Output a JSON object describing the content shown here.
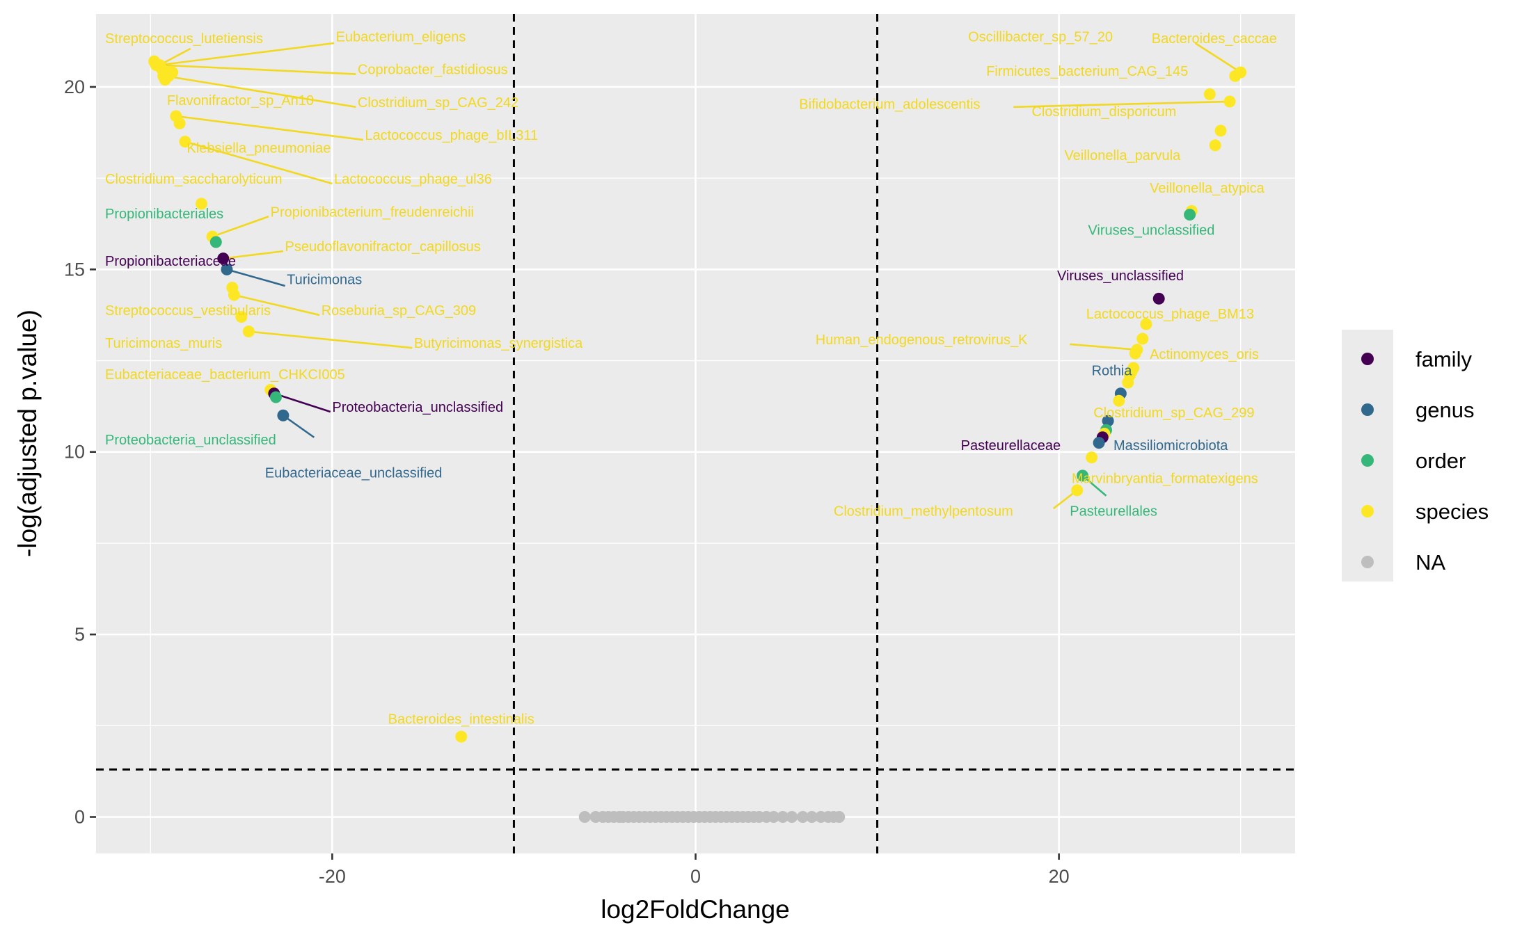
{
  "chart_data": {
    "type": "scatter",
    "title": "",
    "xlabel": "log2FoldChange",
    "ylabel": "-log(adjusted p.value)",
    "xlim": [
      -33,
      33
    ],
    "ylim": [
      -1,
      22
    ],
    "x_ticks": [
      -20,
      0,
      20
    ],
    "x_tick_labels": [
      "-20",
      "0",
      "20"
    ],
    "y_ticks": [
      0,
      5,
      10,
      15,
      20
    ],
    "y_tick_labels": [
      "0",
      "5",
      "10",
      "15",
      "20"
    ],
    "grid": true,
    "threshold_lines": {
      "x": [
        -10,
        10
      ],
      "y": 1.3
    },
    "legend": {
      "position": "right",
      "entries": [
        {
          "label": "family",
          "color": "#440154"
        },
        {
          "label": "genus",
          "color": "#31688E"
        },
        {
          "label": "order",
          "color": "#35B779"
        },
        {
          "label": "species",
          "color": "#FDE725"
        },
        {
          "label": "NA",
          "color": "#BEBEBE"
        }
      ]
    },
    "colors": {
      "family": "#440154",
      "genus": "#31688E",
      "order": "#35B779",
      "species": "#FDE725",
      "NA": "#BEBEBE",
      "panel": "#EBEBEB",
      "grid": "#FFFFFF"
    },
    "points": [
      {
        "x": -29.5,
        "y": 20.6,
        "level": "species"
      },
      {
        "x": -29.2,
        "y": 20.3,
        "level": "species"
      },
      {
        "x": -29.0,
        "y": 20.4,
        "level": "species"
      },
      {
        "x": -29.2,
        "y": 20.2,
        "level": "species"
      },
      {
        "x": -29.8,
        "y": 20.7,
        "level": "species"
      },
      {
        "x": -29.3,
        "y": 20.3,
        "level": "species"
      },
      {
        "x": -29.1,
        "y": 20.4,
        "level": "species"
      },
      {
        "x": -29.4,
        "y": 20.5,
        "level": "species"
      },
      {
        "x": -29.0,
        "y": 20.3,
        "level": "species"
      },
      {
        "x": -28.8,
        "y": 20.4,
        "level": "species"
      },
      {
        "x": -29.7,
        "y": 20.6,
        "level": "species"
      },
      {
        "x": -28.6,
        "y": 19.2,
        "level": "species"
      },
      {
        "x": -28.4,
        "y": 19.0,
        "level": "species"
      },
      {
        "x": -28.1,
        "y": 18.5,
        "level": "species"
      },
      {
        "x": -27.2,
        "y": 16.8,
        "level": "species"
      },
      {
        "x": -26.6,
        "y": 15.9,
        "level": "species"
      },
      {
        "x": -26.4,
        "y": 15.75,
        "level": "order"
      },
      {
        "x": -26.0,
        "y": 15.3,
        "level": "family"
      },
      {
        "x": -25.8,
        "y": 15.0,
        "level": "genus"
      },
      {
        "x": -25.5,
        "y": 14.5,
        "level": "species"
      },
      {
        "x": -25.4,
        "y": 14.3,
        "level": "species"
      },
      {
        "x": -25.0,
        "y": 13.7,
        "level": "species"
      },
      {
        "x": -24.6,
        "y": 13.3,
        "level": "species"
      },
      {
        "x": -23.4,
        "y": 11.7,
        "level": "species"
      },
      {
        "x": -23.2,
        "y": 11.6,
        "level": "family"
      },
      {
        "x": -23.1,
        "y": 11.5,
        "level": "order"
      },
      {
        "x": -22.7,
        "y": 11.0,
        "level": "genus"
      },
      {
        "x": -12.9,
        "y": 2.2,
        "level": "species"
      },
      {
        "x": 30.0,
        "y": 20.4,
        "level": "species"
      },
      {
        "x": 29.7,
        "y": 20.3,
        "level": "species"
      },
      {
        "x": 28.3,
        "y": 19.8,
        "level": "species"
      },
      {
        "x": 29.4,
        "y": 19.6,
        "level": "species"
      },
      {
        "x": 28.9,
        "y": 18.8,
        "level": "species"
      },
      {
        "x": 28.6,
        "y": 18.4,
        "level": "species"
      },
      {
        "x": 27.3,
        "y": 16.6,
        "level": "species"
      },
      {
        "x": 27.2,
        "y": 16.5,
        "level": "order"
      },
      {
        "x": 25.5,
        "y": 14.2,
        "level": "family"
      },
      {
        "x": 24.8,
        "y": 13.5,
        "level": "species"
      },
      {
        "x": 24.6,
        "y": 13.1,
        "level": "species"
      },
      {
        "x": 24.3,
        "y": 12.8,
        "level": "species"
      },
      {
        "x": 24.2,
        "y": 12.7,
        "level": "species"
      },
      {
        "x": 24.1,
        "y": 12.3,
        "level": "species"
      },
      {
        "x": 24.0,
        "y": 12.2,
        "level": "species"
      },
      {
        "x": 23.9,
        "y": 12.1,
        "level": "species"
      },
      {
        "x": 23.8,
        "y": 11.9,
        "level": "species"
      },
      {
        "x": 23.4,
        "y": 11.6,
        "level": "genus"
      },
      {
        "x": 23.3,
        "y": 11.4,
        "level": "species"
      },
      {
        "x": 22.7,
        "y": 10.85,
        "level": "genus"
      },
      {
        "x": 22.6,
        "y": 10.6,
        "level": "order"
      },
      {
        "x": 22.5,
        "y": 10.5,
        "level": "species"
      },
      {
        "x": 22.4,
        "y": 10.4,
        "level": "family"
      },
      {
        "x": 22.2,
        "y": 10.25,
        "level": "genus"
      },
      {
        "x": 21.8,
        "y": 9.85,
        "level": "species"
      },
      {
        "x": 21.3,
        "y": 9.35,
        "level": "order"
      },
      {
        "x": 21.0,
        "y": 8.95,
        "level": "species"
      },
      {
        "x": -6.1,
        "y": 0,
        "level": "NA"
      },
      {
        "x": -5.5,
        "y": 0,
        "level": "NA"
      },
      {
        "x": -5.1,
        "y": 0,
        "level": "NA"
      },
      {
        "x": -4.8,
        "y": 0,
        "level": "NA"
      },
      {
        "x": -4.5,
        "y": 0,
        "level": "NA"
      },
      {
        "x": -4.2,
        "y": 0,
        "level": "NA"
      },
      {
        "x": -4.0,
        "y": 0,
        "level": "NA"
      },
      {
        "x": -3.7,
        "y": 0,
        "level": "NA"
      },
      {
        "x": -3.4,
        "y": 0,
        "level": "NA"
      },
      {
        "x": -3.1,
        "y": 0,
        "level": "NA"
      },
      {
        "x": -2.8,
        "y": 0,
        "level": "NA"
      },
      {
        "x": -2.5,
        "y": 0,
        "level": "NA"
      },
      {
        "x": -2.2,
        "y": 0,
        "level": "NA"
      },
      {
        "x": -1.9,
        "y": 0,
        "level": "NA"
      },
      {
        "x": -1.6,
        "y": 0,
        "level": "NA"
      },
      {
        "x": -1.3,
        "y": 0,
        "level": "NA"
      },
      {
        "x": -1.0,
        "y": 0,
        "level": "NA"
      },
      {
        "x": -0.7,
        "y": 0,
        "level": "NA"
      },
      {
        "x": -0.4,
        "y": 0,
        "level": "NA"
      },
      {
        "x": -0.1,
        "y": 0,
        "level": "NA"
      },
      {
        "x": 0.2,
        "y": 0,
        "level": "NA"
      },
      {
        "x": 0.5,
        "y": 0,
        "level": "NA"
      },
      {
        "x": 0.8,
        "y": 0,
        "level": "NA"
      },
      {
        "x": 1.1,
        "y": 0,
        "level": "NA"
      },
      {
        "x": 1.4,
        "y": 0,
        "level": "NA"
      },
      {
        "x": 1.7,
        "y": 0,
        "level": "NA"
      },
      {
        "x": 2.0,
        "y": 0,
        "level": "NA"
      },
      {
        "x": 2.3,
        "y": 0,
        "level": "NA"
      },
      {
        "x": 2.6,
        "y": 0,
        "level": "NA"
      },
      {
        "x": 2.9,
        "y": 0,
        "level": "NA"
      },
      {
        "x": 3.2,
        "y": 0,
        "level": "NA"
      },
      {
        "x": 3.5,
        "y": 0,
        "level": "NA"
      },
      {
        "x": 3.9,
        "y": 0,
        "level": "NA"
      },
      {
        "x": 4.3,
        "y": 0,
        "level": "NA"
      },
      {
        "x": 4.8,
        "y": 0,
        "level": "NA"
      },
      {
        "x": 5.3,
        "y": 0,
        "level": "NA"
      },
      {
        "x": 5.9,
        "y": 0,
        "level": "NA"
      },
      {
        "x": 6.4,
        "y": 0,
        "level": "NA"
      },
      {
        "x": 6.9,
        "y": 0,
        "level": "NA"
      },
      {
        "x": 7.3,
        "y": 0,
        "level": "NA"
      },
      {
        "x": 7.6,
        "y": 0,
        "level": "NA"
      },
      {
        "x": 7.9,
        "y": 0,
        "level": "NA"
      }
    ],
    "annotations": [
      {
        "text": "Streptococcus_lutetiensis",
        "level": "species",
        "x": -32.5,
        "y": 21.2,
        "anchor": "start"
      },
      {
        "text": "Eubacterium_eligens",
        "level": "species",
        "x": -19.8,
        "y": 21.25,
        "anchor": "start"
      },
      {
        "text": "Coprobacter_fastidiosus",
        "level": "species",
        "x": -18.6,
        "y": 20.35,
        "anchor": "start"
      },
      {
        "text": "Flavonifractor_sp_An10",
        "level": "species",
        "x": -29.1,
        "y": 19.5,
        "anchor": "start"
      },
      {
        "text": "Clostridium_sp_CAG_242",
        "level": "species",
        "x": -18.6,
        "y": 19.45,
        "anchor": "start"
      },
      {
        "text": "Lactococcus_phage_bIL311",
        "level": "species",
        "x": -18.2,
        "y": 18.55,
        "anchor": "start"
      },
      {
        "text": "Klebsiella_pneumoniae",
        "level": "species",
        "x": -28.0,
        "y": 18.2,
        "anchor": "start"
      },
      {
        "text": "Clostridium_saccharolyticum",
        "level": "species",
        "x": -32.5,
        "y": 17.35,
        "anchor": "start"
      },
      {
        "text": "Lactococcus_phage_ul36",
        "level": "species",
        "x": -19.9,
        "y": 17.35,
        "anchor": "start"
      },
      {
        "text": "Propionibacteriales",
        "level": "order",
        "x": -32.5,
        "y": 16.4,
        "anchor": "start"
      },
      {
        "text": "Propionibacterium_freudenreichii",
        "level": "species",
        "x": -23.4,
        "y": 16.45,
        "anchor": "start"
      },
      {
        "text": "Pseudoflavonifractor_capillosus",
        "level": "species",
        "x": -22.6,
        "y": 15.5,
        "anchor": "start"
      },
      {
        "text": "Propionibacteriaceae",
        "level": "family",
        "x": -32.5,
        "y": 15.1,
        "anchor": "start"
      },
      {
        "text": "Turicimonas",
        "level": "genus",
        "x": -22.5,
        "y": 14.6,
        "anchor": "start"
      },
      {
        "text": "Streptococcus_vestibularis",
        "level": "species",
        "x": -32.5,
        "y": 13.75,
        "anchor": "start"
      },
      {
        "text": "Roseburia_sp_CAG_309",
        "level": "species",
        "x": -20.6,
        "y": 13.75,
        "anchor": "start"
      },
      {
        "text": "Turicimonas_muris",
        "level": "species",
        "x": -32.5,
        "y": 12.85,
        "anchor": "start"
      },
      {
        "text": "Butyricimonas_synergistica",
        "level": "species",
        "x": -15.5,
        "y": 12.85,
        "anchor": "start"
      },
      {
        "text": "Eubacteriaceae_bacterium_CHKCI005",
        "level": "species",
        "x": -32.5,
        "y": 12.0,
        "anchor": "start"
      },
      {
        "text": "Proteobacteria_unclassified",
        "level": "family",
        "x": -20.0,
        "y": 11.1,
        "anchor": "start"
      },
      {
        "text": "Proteobacteria_unclassified",
        "level": "order",
        "x": -32.5,
        "y": 10.2,
        "anchor": "start"
      },
      {
        "text": "Eubacteriaceae_unclassified",
        "level": "genus",
        "x": -23.7,
        "y": 9.3,
        "anchor": "start"
      },
      {
        "text": "Bacteroides_intestinalis",
        "level": "species",
        "x": -12.9,
        "y": 2.55,
        "anchor": "middle"
      },
      {
        "text": "Oscillibacter_sp_57_20",
        "level": "species",
        "x": 15.0,
        "y": 21.25,
        "anchor": "start"
      },
      {
        "text": "Bacteroides_caccae",
        "level": "species",
        "x": 25.1,
        "y": 21.2,
        "anchor": "start"
      },
      {
        "text": "Firmicutes_bacterium_CAG_145",
        "level": "species",
        "x": 16.0,
        "y": 20.3,
        "anchor": "start"
      },
      {
        "text": "Bifidobacterium_adolescentis",
        "level": "species",
        "x": 5.7,
        "y": 19.4,
        "anchor": "start"
      },
      {
        "text": "Clostridium_disporicum",
        "level": "species",
        "x": 18.5,
        "y": 19.2,
        "anchor": "start"
      },
      {
        "text": "Veillonella_parvula",
        "level": "species",
        "x": 20.3,
        "y": 18.0,
        "anchor": "start"
      },
      {
        "text": "Veillonella_atypica",
        "level": "species",
        "x": 25.0,
        "y": 17.1,
        "anchor": "start"
      },
      {
        "text": "Viruses_unclassified",
        "level": "order",
        "x": 21.6,
        "y": 15.95,
        "anchor": "start"
      },
      {
        "text": "Viruses_unclassified",
        "level": "family",
        "x": 19.9,
        "y": 14.7,
        "anchor": "start"
      },
      {
        "text": "Lactococcus_phage_BM13",
        "level": "species",
        "x": 21.5,
        "y": 13.65,
        "anchor": "start"
      },
      {
        "text": "Human_endogenous_retrovirus_K",
        "level": "species",
        "x": 6.6,
        "y": 12.95,
        "anchor": "start"
      },
      {
        "text": "Actinomyces_oris",
        "level": "species",
        "x": 25.0,
        "y": 12.55,
        "anchor": "start"
      },
      {
        "text": "Rothia",
        "level": "genus",
        "x": 21.8,
        "y": 12.1,
        "anchor": "start"
      },
      {
        "text": "Clostridium_sp_CAG_299",
        "level": "species",
        "x": 21.9,
        "y": 10.95,
        "anchor": "start"
      },
      {
        "text": "Pasteurellaceae",
        "level": "family",
        "x": 14.6,
        "y": 10.05,
        "anchor": "start"
      },
      {
        "text": "Massiliomicrobiota",
        "level": "genus",
        "x": 23.0,
        "y": 10.05,
        "anchor": "start"
      },
      {
        "text": "Marvinbryantia_formatexigens",
        "level": "species",
        "x": 20.7,
        "y": 9.15,
        "anchor": "start"
      },
      {
        "text": "Clostridium_methylpentosum",
        "level": "species",
        "x": 7.6,
        "y": 8.25,
        "anchor": "start"
      },
      {
        "text": "Pasteurellales",
        "level": "order",
        "x": 20.6,
        "y": 8.25,
        "anchor": "start"
      }
    ],
    "connectors": [
      {
        "x1": -29.5,
        "y1": 20.6,
        "x2": -27.8,
        "y2": 21.05,
        "level": "species"
      },
      {
        "x1": -29.5,
        "y1": 20.6,
        "x2": -19.9,
        "y2": 21.2,
        "level": "species"
      },
      {
        "x1": -29.5,
        "y1": 20.6,
        "x2": -18.7,
        "y2": 20.35,
        "level": "species"
      },
      {
        "x1": -29.2,
        "y1": 20.3,
        "x2": -18.7,
        "y2": 19.45,
        "level": "species"
      },
      {
        "x1": -28.6,
        "y1": 19.2,
        "x2": -18.3,
        "y2": 18.55,
        "level": "species"
      },
      {
        "x1": -28.1,
        "y1": 18.5,
        "x2": -20.0,
        "y2": 17.35,
        "level": "species"
      },
      {
        "x1": -26.6,
        "y1": 15.9,
        "x2": -23.5,
        "y2": 16.45,
        "level": "species"
      },
      {
        "x1": -26.0,
        "y1": 15.3,
        "x2": -22.7,
        "y2": 15.5,
        "level": "species"
      },
      {
        "x1": -25.8,
        "y1": 15.0,
        "x2": -22.6,
        "y2": 14.55,
        "level": "genus"
      },
      {
        "x1": -25.4,
        "y1": 14.3,
        "x2": -20.7,
        "y2": 13.75,
        "level": "species"
      },
      {
        "x1": -24.6,
        "y1": 13.3,
        "x2": -15.6,
        "y2": 12.85,
        "level": "species"
      },
      {
        "x1": -23.2,
        "y1": 11.6,
        "x2": -20.1,
        "y2": 11.1,
        "level": "family"
      },
      {
        "x1": -22.7,
        "y1": 11.0,
        "x2": -21.0,
        "y2": 10.4,
        "level": "genus"
      },
      {
        "x1": 30.0,
        "y1": 20.4,
        "x2": 27.5,
        "y2": 21.2,
        "level": "species"
      },
      {
        "x1": 29.4,
        "y1": 19.6,
        "x2": 17.5,
        "y2": 19.45,
        "level": "species"
      },
      {
        "x1": 24.3,
        "y1": 12.8,
        "x2": 20.6,
        "y2": 12.95,
        "level": "species"
      },
      {
        "x1": 21.0,
        "y1": 8.95,
        "x2": 19.7,
        "y2": 8.45,
        "level": "species"
      },
      {
        "x1": 21.3,
        "y1": 9.35,
        "x2": 22.6,
        "y2": 8.8,
        "level": "order"
      }
    ]
  }
}
